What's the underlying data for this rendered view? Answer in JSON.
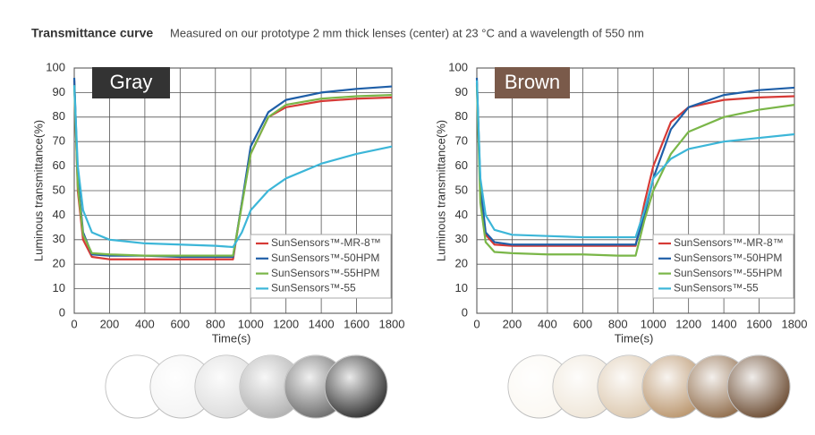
{
  "header": {
    "title": "Transmittance curve",
    "subtitle": "Measured on our prototype 2 mm thick lenses (center) at 23 °C and a wavelength of 550 nm"
  },
  "chart_data": [
    {
      "type": "line",
      "label": "Gray",
      "label_color": "#333333",
      "x_label": "Time(s)",
      "y_label": "Luminous transmittance(%)",
      "x": [
        0,
        20,
        50,
        100,
        200,
        400,
        600,
        800,
        900,
        950,
        1000,
        1100,
        1200,
        1400,
        1600,
        1800
      ],
      "xlim": [
        0,
        1800
      ],
      "xticks": [
        0,
        200,
        400,
        600,
        800,
        1000,
        1200,
        1400,
        1600,
        1800
      ],
      "ylim": [
        0,
        100
      ],
      "yticks": [
        0,
        10,
        20,
        30,
        40,
        50,
        60,
        70,
        80,
        90,
        100
      ],
      "grid": true,
      "legend": "lower right",
      "series": [
        {
          "name": "SunSensors™-MR-8™",
          "color": "#d63a36",
          "values": [
            95,
            50,
            30,
            23,
            22,
            22,
            22,
            22,
            22,
            45,
            65,
            80,
            84,
            86.5,
            87.5,
            88
          ]
        },
        {
          "name": "SunSensors™-50HPM",
          "color": "#1f5fa8",
          "values": [
            96,
            55,
            33,
            24,
            23.5,
            23.5,
            23,
            23,
            23,
            45,
            68,
            82,
            87,
            90,
            91.5,
            92.5
          ]
        },
        {
          "name": "SunSensors™-55HPM",
          "color": "#7ab648",
          "values": [
            93,
            52,
            32,
            24.5,
            24,
            23.5,
            23.5,
            23.5,
            23.5,
            44,
            65,
            80,
            85,
            87.5,
            88.5,
            89
          ]
        },
        {
          "name": "SunSensors™-55",
          "color": "#3cb6d8",
          "values": [
            93,
            60,
            42,
            33,
            30,
            28.5,
            28,
            27.5,
            27,
            33,
            42,
            50,
            55,
            61,
            65,
            68
          ]
        }
      ]
    },
    {
      "type": "line",
      "label": "Brown",
      "label_color": "#7a5a4a",
      "x_label": "Time(s)",
      "y_label": "Luminous transmittance(%)",
      "x": [
        0,
        20,
        50,
        100,
        200,
        400,
        600,
        800,
        900,
        950,
        1000,
        1100,
        1200,
        1400,
        1600,
        1800
      ],
      "xlim": [
        0,
        1800
      ],
      "xticks": [
        0,
        200,
        400,
        600,
        800,
        1000,
        1200,
        1400,
        1600,
        1800
      ],
      "ylim": [
        0,
        100
      ],
      "yticks": [
        0,
        10,
        20,
        30,
        40,
        50,
        60,
        70,
        80,
        90,
        100
      ],
      "grid": true,
      "legend": "lower right",
      "series": [
        {
          "name": "SunSensors™-MR-8™",
          "color": "#d63a36",
          "values": [
            94,
            50,
            32,
            28,
            27.5,
            27.5,
            27.5,
            27.5,
            27.5,
            45,
            60,
            78,
            84,
            87,
            88,
            88.5
          ]
        },
        {
          "name": "SunSensors™-50HPM",
          "color": "#1f5fa8",
          "values": [
            96,
            52,
            33,
            29,
            28,
            28,
            28,
            28,
            28,
            40,
            55,
            75,
            84,
            89,
            91,
            92
          ]
        },
        {
          "name": "SunSensors™-55HPM",
          "color": "#7ab648",
          "values": [
            93,
            45,
            29,
            25,
            24.5,
            24,
            24,
            23.5,
            23.5,
            38,
            50,
            65,
            74,
            80,
            83,
            85
          ]
        },
        {
          "name": "SunSensors™-55",
          "color": "#3cb6d8",
          "values": [
            95,
            55,
            40,
            34,
            32,
            31.5,
            31,
            31,
            31,
            42,
            55,
            63,
            67,
            70,
            71.5,
            73
          ]
        }
      ]
    }
  ]
}
